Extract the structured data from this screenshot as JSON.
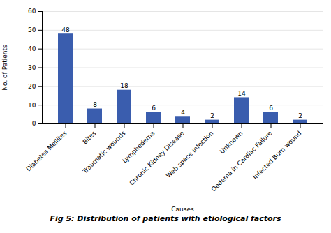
{
  "chart_data": {
    "type": "bar",
    "title": "Fig 5: Distribution of patients with etiological factors",
    "categories": [
      "Diabetes Mellites",
      "Bites",
      "Traumatic wounds",
      "Lymphedema",
      "Chronic Kidney Disease",
      "Web space infection",
      "Unknown",
      "Oedema in Cardiac Failure",
      "Infected Burn wound"
    ],
    "values": [
      48,
      8,
      18,
      6,
      4,
      2,
      14,
      6,
      2
    ],
    "color": "#3A5DAE",
    "xlabel": "Causes",
    "ylabel": "No. of Patients",
    "ylim": [
      0,
      60
    ],
    "yticks": [
      0,
      10,
      20,
      30,
      40,
      50,
      60
    ],
    "grid": true,
    "data_labels": true
  }
}
